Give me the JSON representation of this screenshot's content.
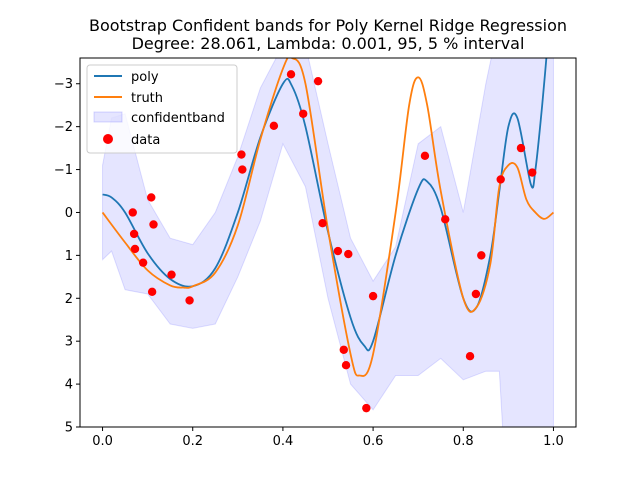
{
  "chart_data": {
    "type": "line",
    "title": [
      "Bootstrap Confident bands for Poly Kernel Ridge Regression",
      "Degree: 28.061, Lambda: 0.001, 95, 5 % interval"
    ],
    "xlabel": "",
    "ylabel": "",
    "xlim": [
      -0.05,
      1.05
    ],
    "ylim": [
      5.0,
      -3.6
    ],
    "y_inverted": true,
    "grid": false,
    "legend_position": "top-left",
    "x_ticks": [
      "0.0",
      "0.2",
      "0.4",
      "0.6",
      "0.8",
      "1.0"
    ],
    "x_tick_values": [
      0.0,
      0.2,
      0.4,
      0.6,
      0.8,
      1.0
    ],
    "y_ticks": [
      "−3",
      "−2",
      "−1",
      "0",
      "1",
      "2",
      "3",
      "4",
      "5"
    ],
    "y_tick_values": [
      -3,
      -2,
      -1,
      0,
      1,
      2,
      3,
      4,
      5
    ],
    "legend": [
      "poly",
      "truth",
      "confidentband",
      "data"
    ],
    "colors": {
      "poly": "#1f77b4",
      "truth": "#ff7f0e",
      "band_fill": "#0000ff",
      "band_opacity": 0.1,
      "data": "#ff0000"
    },
    "series": [
      {
        "name": "poly",
        "x": [
          0.0,
          0.02,
          0.05,
          0.1,
          0.15,
          0.2,
          0.25,
          0.3,
          0.35,
          0.4,
          0.42,
          0.45,
          0.5,
          0.55,
          0.58,
          0.6,
          0.65,
          0.7,
          0.72,
          0.75,
          0.8,
          0.83,
          0.86,
          0.88,
          0.9,
          0.92,
          0.95,
          0.96,
          0.975,
          0.99
        ],
        "y": [
          -0.42,
          -0.35,
          0.0,
          0.95,
          1.55,
          1.72,
          1.3,
          0.0,
          -1.75,
          -3.0,
          -2.95,
          -2.0,
          0.45,
          2.45,
          3.1,
          3.0,
          1.0,
          -0.55,
          -0.72,
          -0.1,
          2.0,
          2.2,
          1.0,
          -0.5,
          -2.0,
          -2.2,
          -0.65,
          -1.0,
          -2.5,
          -4.3
        ]
      },
      {
        "name": "truth",
        "x": [
          0.0,
          0.05,
          0.1,
          0.15,
          0.18,
          0.2,
          0.25,
          0.3,
          0.35,
          0.4,
          0.42,
          0.45,
          0.5,
          0.55,
          0.57,
          0.6,
          0.65,
          0.68,
          0.7,
          0.72,
          0.75,
          0.8,
          0.83,
          0.86,
          0.88,
          0.9,
          0.92,
          0.94,
          0.96,
          0.98,
          1.0
        ],
        "y": [
          0.0,
          0.7,
          1.35,
          1.7,
          1.75,
          1.72,
          1.4,
          0.3,
          -1.7,
          -3.35,
          -3.6,
          -3.0,
          0.4,
          3.3,
          3.8,
          3.3,
          0.0,
          -2.5,
          -3.15,
          -2.5,
          -0.5,
          2.0,
          2.2,
          1.2,
          -0.6,
          -1.1,
          -1.05,
          -0.3,
          0.0,
          0.15,
          0.0
        ]
      }
    ],
    "confidence_band": {
      "name": "confidentband",
      "x": [
        0.0,
        0.02,
        0.05,
        0.1,
        0.15,
        0.2,
        0.25,
        0.3,
        0.35,
        0.4,
        0.45,
        0.5,
        0.55,
        0.6,
        0.65,
        0.7,
        0.75,
        0.8,
        0.85,
        0.88,
        0.89,
        0.9,
        0.92,
        0.95,
        0.98,
        1.0
      ],
      "lower": [
        -1.1,
        -2.2,
        -2.3,
        -0.3,
        0.6,
        0.75,
        0.0,
        -1.3,
        -2.9,
        -3.9,
        -3.9,
        -1.6,
        0.6,
        1.6,
        0.8,
        -1.6,
        -2.0,
        0.0,
        -3.0,
        -4.5,
        -4.5,
        -4.5,
        -4.5,
        -4.5,
        -4.5,
        -4.5
      ],
      "upper": [
        1.1,
        0.9,
        1.8,
        1.9,
        2.6,
        2.7,
        2.6,
        1.5,
        0.2,
        -1.6,
        -0.6,
        2.0,
        4.0,
        4.6,
        3.8,
        3.8,
        3.4,
        3.9,
        3.7,
        3.7,
        5.5,
        5.5,
        5.5,
        5.5,
        5.5,
        5.5
      ]
    },
    "scatter": {
      "name": "data",
      "x": [
        0.067,
        0.07,
        0.072,
        0.09,
        0.108,
        0.11,
        0.113,
        0.153,
        0.193,
        0.308,
        0.31,
        0.38,
        0.418,
        0.445,
        0.478,
        0.488,
        0.522,
        0.535,
        0.54,
        0.545,
        0.585,
        0.6,
        0.715,
        0.76,
        0.815,
        0.828,
        0.84,
        0.883,
        0.928,
        0.953
      ],
      "y": [
        0.0,
        0.5,
        0.85,
        1.17,
        -0.35,
        1.85,
        0.28,
        1.45,
        2.05,
        -1.35,
        -1.0,
        -2.02,
        -3.22,
        -2.3,
        -3.06,
        0.25,
        0.9,
        3.2,
        3.56,
        0.97,
        4.56,
        1.95,
        -1.32,
        0.16,
        3.35,
        1.9,
        1.0,
        -0.77,
        -1.5,
        -0.93
      ]
    }
  }
}
